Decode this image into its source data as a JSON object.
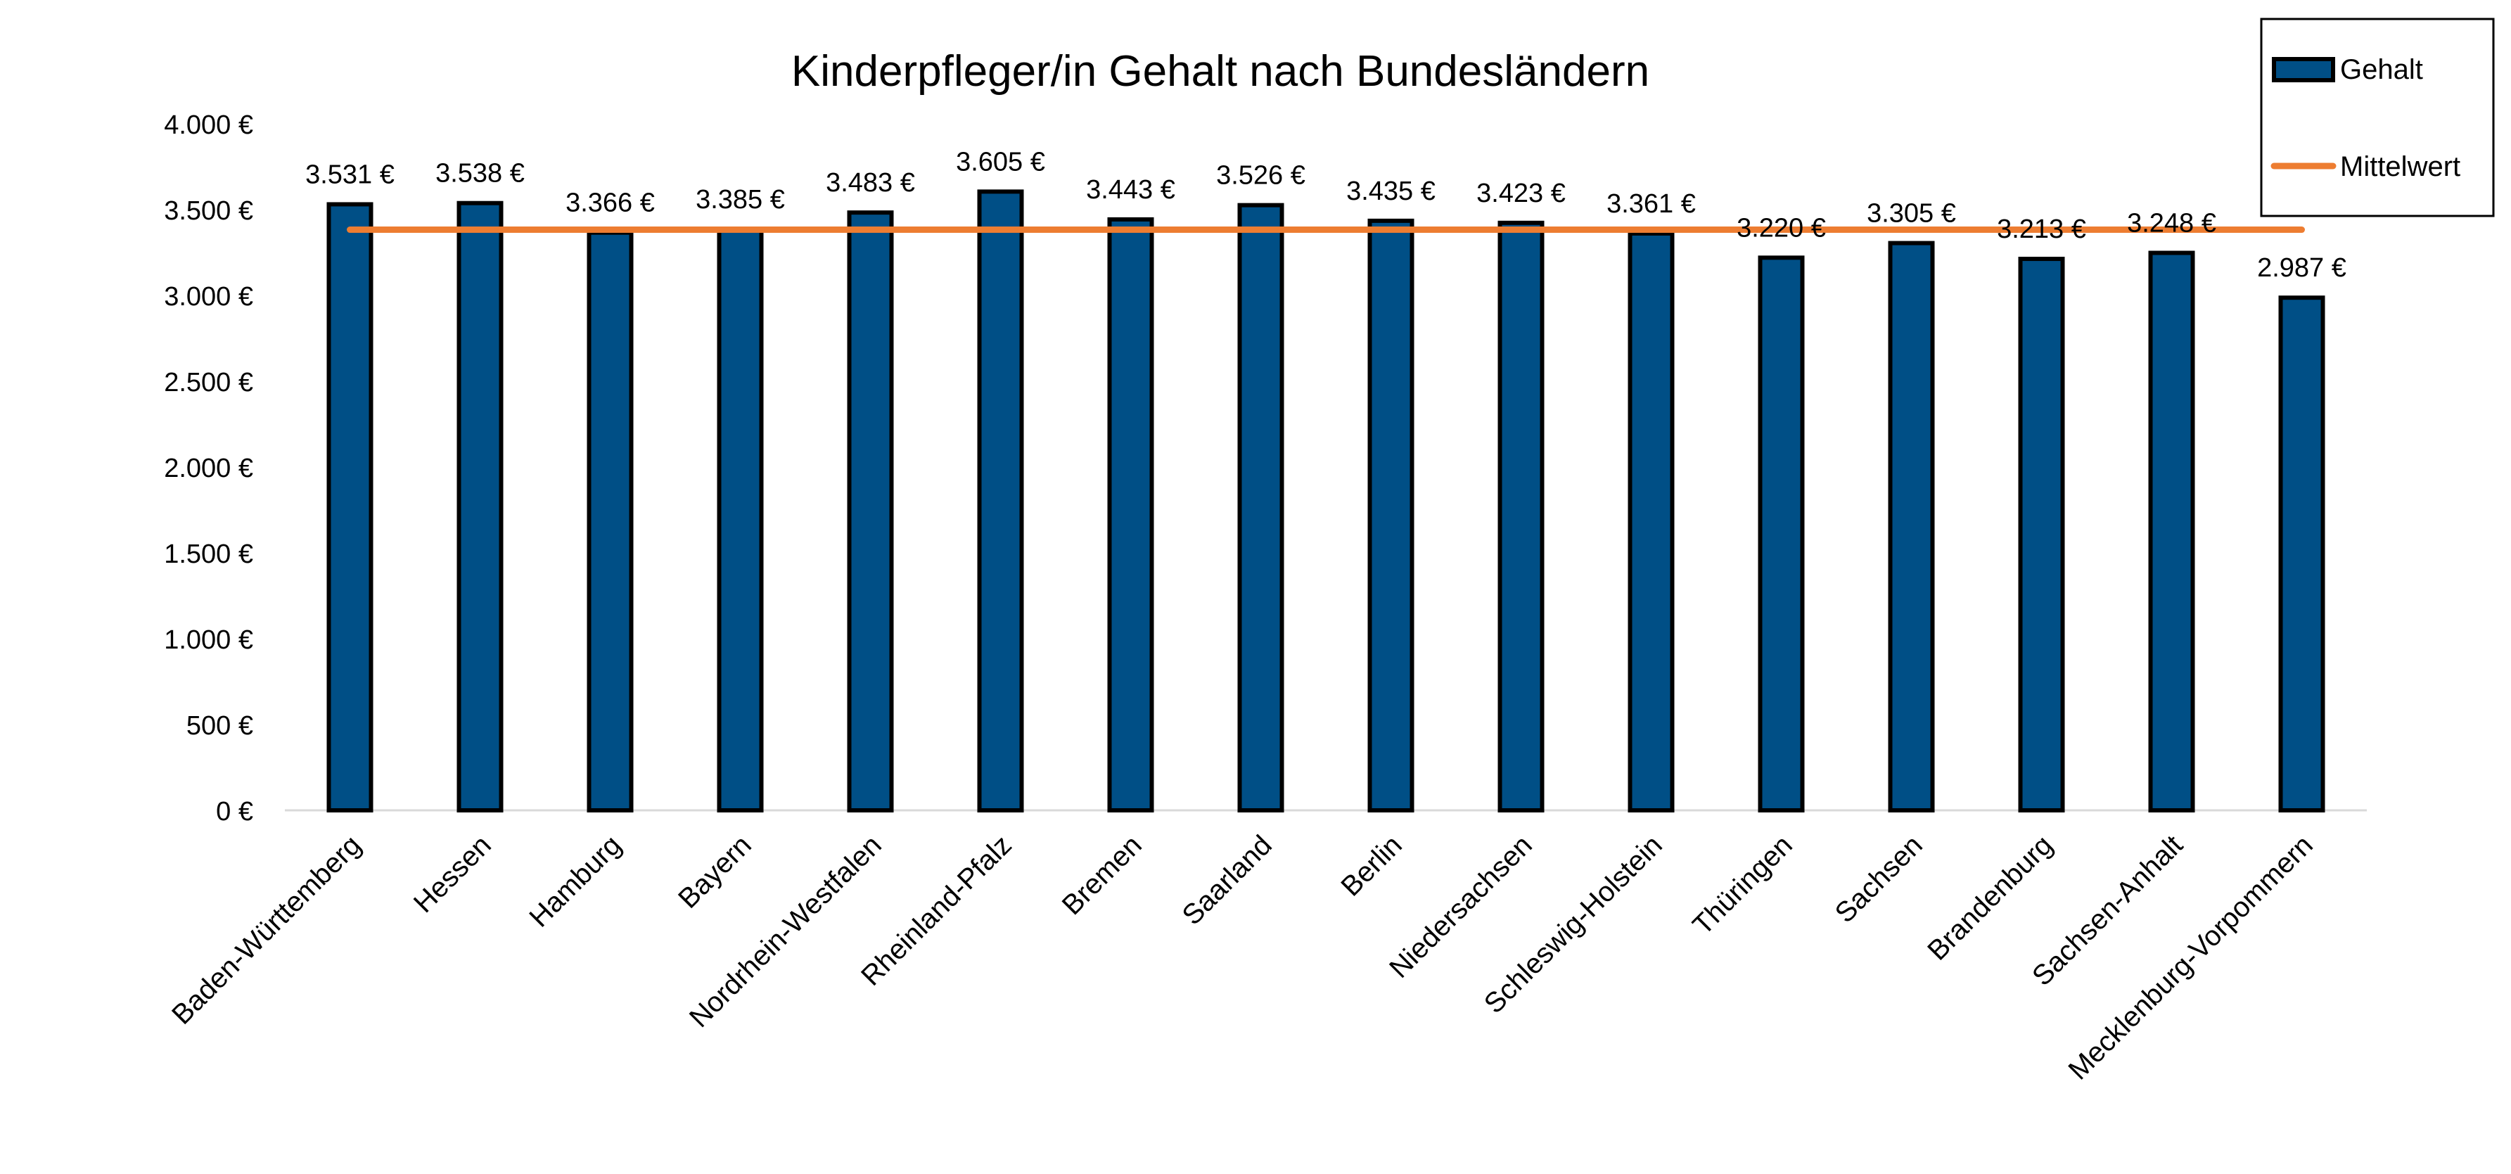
{
  "chart_data": {
    "type": "bar",
    "title": "Kinderpfleger/in Gehalt nach Bundesländern",
    "xlabel": "",
    "ylabel": "",
    "ylim": [
      0,
      4000
    ],
    "yticks": [
      0,
      500,
      1000,
      1500,
      2000,
      2500,
      3000,
      3500,
      4000
    ],
    "ytick_labels": [
      "0 €",
      "500 €",
      "1.000 €",
      "1.500 €",
      "2.000 €",
      "2.500 €",
      "3.000 €",
      "3.500 €",
      "4.000 €"
    ],
    "categories": [
      "Baden-Württemberg",
      "Hessen",
      "Hamburg",
      "Bayern",
      "Nordrhein-Westfalen",
      "Rheinland-Pfalz",
      "Bremen",
      "Saarland",
      "Berlin",
      "Niedersachsen",
      "Schleswig-Holstein",
      "Thüringen",
      "Sachsen",
      "Brandenburg",
      "Sachsen-Anhalt",
      "Mecklenburg-Vorpommern"
    ],
    "series": [
      {
        "name": "Gehalt",
        "kind": "bar",
        "color": "#004f86",
        "values": [
          3531,
          3538,
          3366,
          3385,
          3483,
          3605,
          3443,
          3526,
          3435,
          3423,
          3361,
          3220,
          3305,
          3213,
          3248,
          2987
        ],
        "labels": [
          "3.531 €",
          "3.538 €",
          "3.366 €",
          "3.385 €",
          "3.483 €",
          "3.605 €",
          "3.443 €",
          "3.526 €",
          "3.435 €",
          "3.423 €",
          "3.361 €",
          "3.220 €",
          "3.305 €",
          "3.213 €",
          "3.248 €",
          "2.987 €"
        ]
      },
      {
        "name": "Mittelwert",
        "kind": "line",
        "color": "#ed7d31",
        "values": [
          3383,
          3383,
          3383,
          3383,
          3383,
          3383,
          3383,
          3383,
          3383,
          3383,
          3383,
          3383,
          3383,
          3383,
          3383,
          3383
        ]
      }
    ],
    "legend": {
      "position": "top-right",
      "entries": [
        "Gehalt",
        "Mittelwert"
      ]
    },
    "grid": false
  }
}
